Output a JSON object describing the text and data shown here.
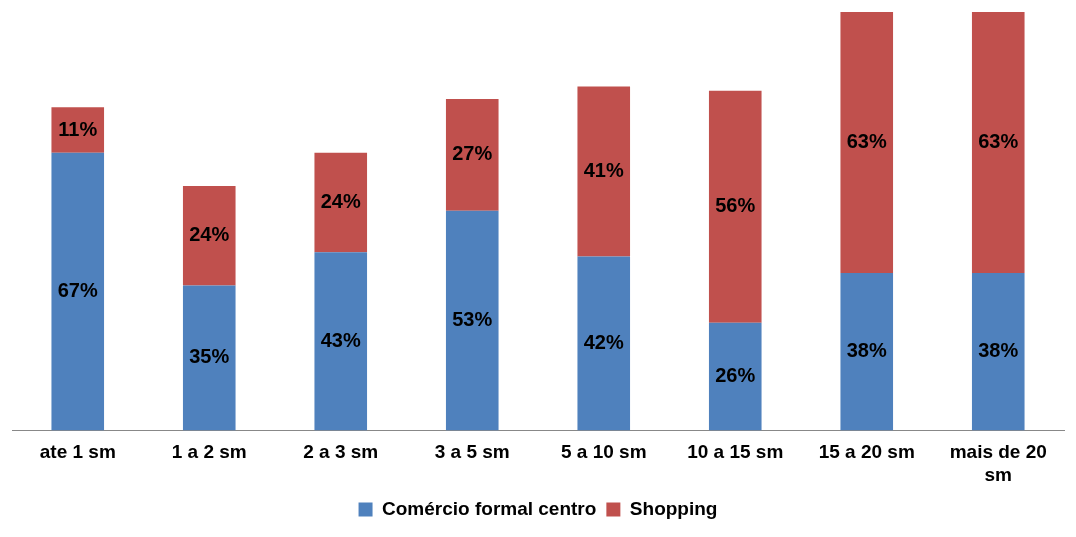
{
  "chart_data": {
    "type": "bar",
    "stacked": true,
    "legend": "bottom",
    "grid": false,
    "tick_labels": "x",
    "categories": [
      "ate 1 sm",
      "1 a 2 sm",
      "2 a 3 sm",
      "3 a 5 sm",
      "5 a 10 sm",
      "10 a 15 sm",
      "15 a 20 sm",
      "mais de 20 sm"
    ],
    "series": [
      {
        "name": "Comércio formal centro",
        "color": "#4f81bd",
        "values": [
          67,
          35,
          43,
          53,
          42,
          26,
          38,
          38
        ],
        "value_labels": [
          "67%",
          "35%",
          "43%",
          "53%",
          "42%",
          "26%",
          "38%",
          "38%"
        ]
      },
      {
        "name": "Shopping",
        "color": "#c0504d",
        "values": [
          11,
          24,
          24,
          27,
          41,
          56,
          63,
          63
        ],
        "value_labels": [
          "11%",
          "24%",
          "24%",
          "27%",
          "41%",
          "56%",
          "63%",
          "63%"
        ]
      }
    ]
  }
}
